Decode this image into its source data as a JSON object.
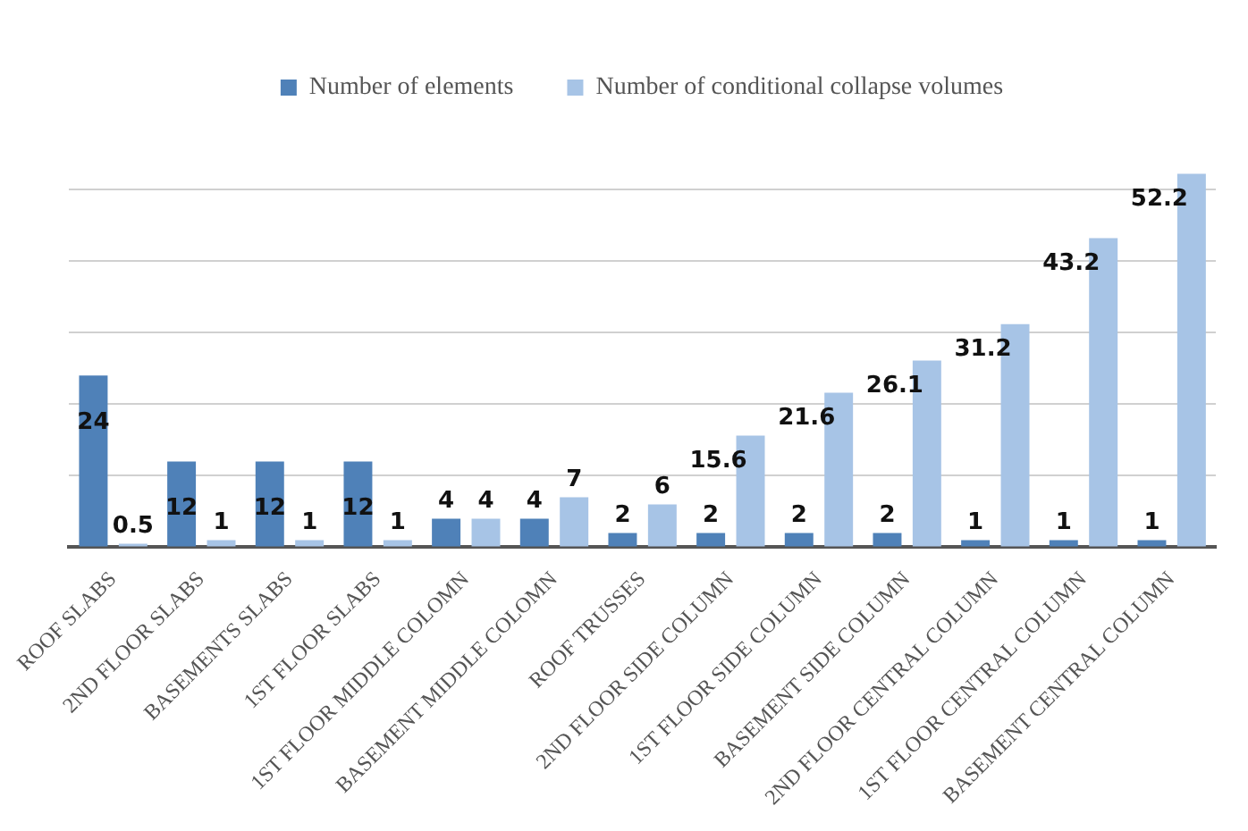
{
  "chart_data": {
    "type": "bar",
    "categories": [
      "ROOF SLABS",
      "2ND FLOOR SLABS",
      "BASEMENTS SLABS",
      "1ST FLOOR SLABS",
      "1ST FLOOR MIDDLE COLOMN",
      "BASEMENT MIDDLE COLOMN",
      "ROOF TRUSSES",
      "2ND FLOOR SIDE COLUMN",
      "1ST FLOOR SIDE COLUMN",
      "BASEMENT SIDE COLUMN",
      "2ND FLOOR CENTRAL COLUMN",
      "1ST FLOOR CENTRAL COLUMN",
      "BASEMENT CENTRAL COLUMN"
    ],
    "series": [
      {
        "name": "Number of elements",
        "color": "#4f81b8",
        "values": [
          24,
          12,
          12,
          12,
          4,
          4,
          2,
          2,
          2,
          2,
          1,
          1,
          1
        ]
      },
      {
        "name": "Number of conditional collapse volumes",
        "color": "#a7c4e6",
        "values": [
          0.5,
          1,
          1,
          1,
          4,
          7,
          6,
          15.6,
          21.6,
          26.1,
          31.2,
          43.2,
          52.2
        ]
      }
    ],
    "yticks": [
      {
        "value": 0,
        "label": null
      },
      {
        "value": 10,
        "label": null
      },
      {
        "value": 20,
        "label": null
      },
      {
        "value": 30,
        "label": null
      },
      {
        "value": 40,
        "label": null
      },
      {
        "value": 50,
        "label": null
      }
    ],
    "tick_labels": "x",
    "grid": "y",
    "legend": "top",
    "data_labels": true
  }
}
